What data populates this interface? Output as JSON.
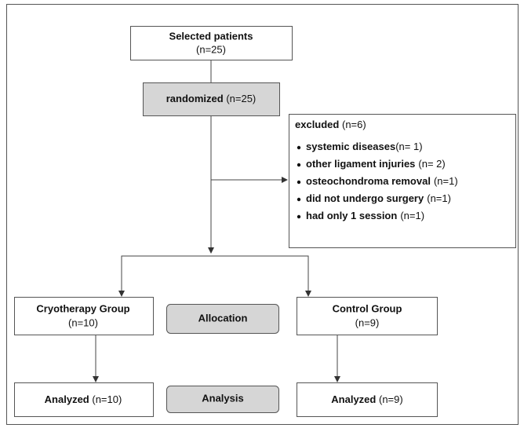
{
  "selected": {
    "title": "Selected patients",
    "count": "(n=25)"
  },
  "randomized": {
    "title": "randomized",
    "count": "(n=25)"
  },
  "excluded": {
    "title": "excluded",
    "count": "(n=6)",
    "items": [
      {
        "label": "systemic diseases",
        "count": "(n= 1)"
      },
      {
        "label": "other ligament injuries",
        "count": "(n= 2)"
      },
      {
        "label": "osteochondroma removal",
        "count": "(n=1)"
      },
      {
        "label": "did not undergo surgery",
        "count": "(n=1)"
      },
      {
        "label": "had only 1 session",
        "count": "(n=1)"
      }
    ]
  },
  "groups": [
    {
      "title": "Cryotherapy Group",
      "count": "(n=10)"
    },
    {
      "title": "Control Group",
      "count": "(n=9)"
    }
  ],
  "stages": [
    "Allocation",
    "Analysis"
  ],
  "analyzed": [
    {
      "title": "Analyzed",
      "count": "(n=10)"
    },
    {
      "title": "Analyzed",
      "count": "(n=9)"
    }
  ]
}
